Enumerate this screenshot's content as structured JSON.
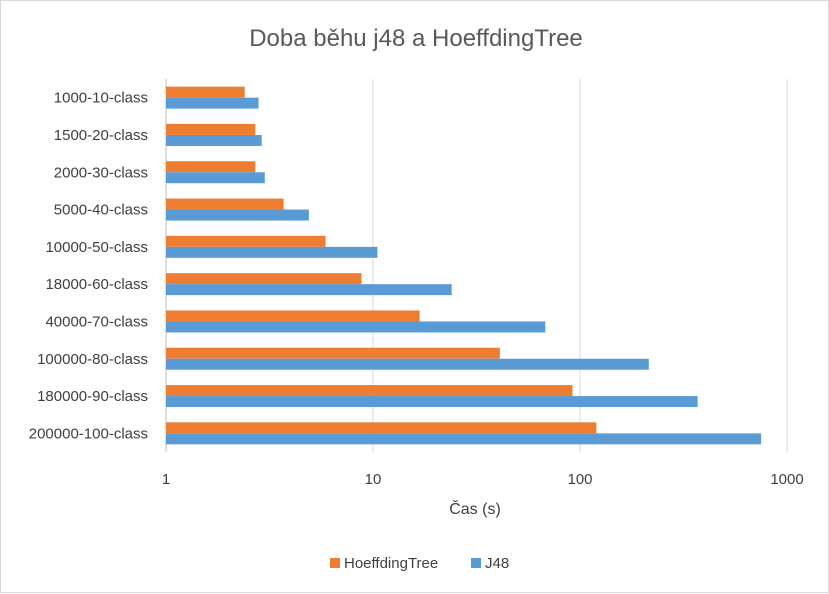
{
  "chart_data": {
    "type": "bar",
    "orientation": "horizontal",
    "title": "Doba běhu j48 a HoeffdingTree",
    "xlabel": "Čas (s)",
    "ylabel": "",
    "xscale": "log",
    "xlim": [
      1,
      1000
    ],
    "xticks": [
      "1",
      "10",
      "100",
      "1000"
    ],
    "grid": true,
    "legend_position": "bottom",
    "categories": [
      "1000-10-class",
      "1500-20-class",
      "2000-30-class",
      "5000-40-class",
      "10000-50-class",
      "18000-60-class",
      "40000-70-class",
      "100000-80-class",
      "180000-90-class",
      "200000-100-class"
    ],
    "series": [
      {
        "name": "HoeffdingTree",
        "color": "#ED7D31",
        "values": [
          2.4,
          2.7,
          2.7,
          3.7,
          5.9,
          8.8,
          16.8,
          41,
          92,
          120
        ]
      },
      {
        "name": "J48",
        "color": "#5B9BD5",
        "values": [
          2.8,
          2.9,
          3.0,
          4.9,
          10.5,
          24,
          68,
          215,
          370,
          750
        ]
      }
    ]
  }
}
